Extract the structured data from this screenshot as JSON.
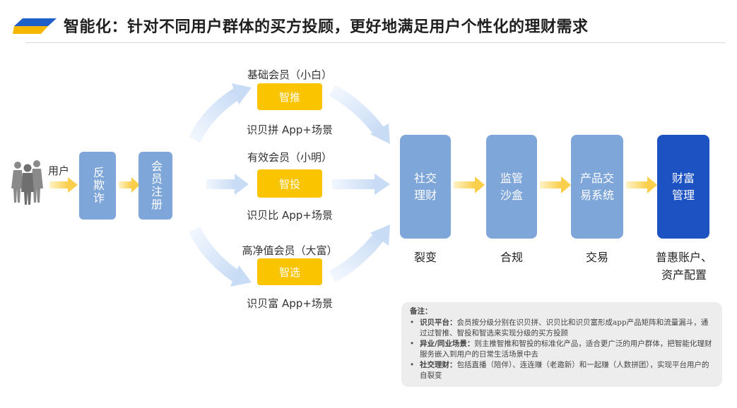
{
  "header": {
    "title": "智能化：针对不同用户群体的买方投顾，更好地满足用户个性化的理财需求"
  },
  "flow": {
    "user_label": "用户",
    "anti_fraud": "反欺诈",
    "member_register": "会员注册"
  },
  "tiers": [
    {
      "member": "基础会员（小白）",
      "tool": "智推",
      "scene": "识贝拼 App+场景"
    },
    {
      "member": "有效会员（小明）",
      "tool": "智投",
      "scene": "识贝比 App+场景"
    },
    {
      "member": "高净值会员（大富）",
      "tool": "智选",
      "scene": "识贝富 App+场景"
    }
  ],
  "stages": [
    {
      "box": "社交\n理财",
      "caption": "裂变"
    },
    {
      "box": "监管\n沙盒",
      "caption": "合规"
    },
    {
      "box": "产品交\n易系统",
      "caption": "交易"
    },
    {
      "box": "财富\n管理",
      "caption": "普惠账户、\n资产配置"
    }
  ],
  "notes": {
    "title": "备注：",
    "items": [
      {
        "bold": "识贝平台：",
        "text": "会员按分级分别在识贝拼、识贝比和识贝富形成app产品矩阵和流量漏斗，通过过智推、智投和智选来实现分级的买方投顾"
      },
      {
        "bold": "异业/同业场景：",
        "text": "则主推智推和智投的标准化产品，适合更广泛的用户群体，把智能化理财服务嵌入到用户的日常生活场景中去"
      },
      {
        "bold": "社交理财：",
        "text": "包括直播（陪伴）、连连赚（老邀新）和一起赚（人数拼团），实现平台用户的自裂变"
      }
    ]
  },
  "colors": {
    "box_blue": "#7fa6d9",
    "dark_blue": "#1d52c3",
    "yellow": "#fbc400",
    "arrow_blue": "#cfe0f7",
    "arrow_yellow": "#fcd86a"
  }
}
